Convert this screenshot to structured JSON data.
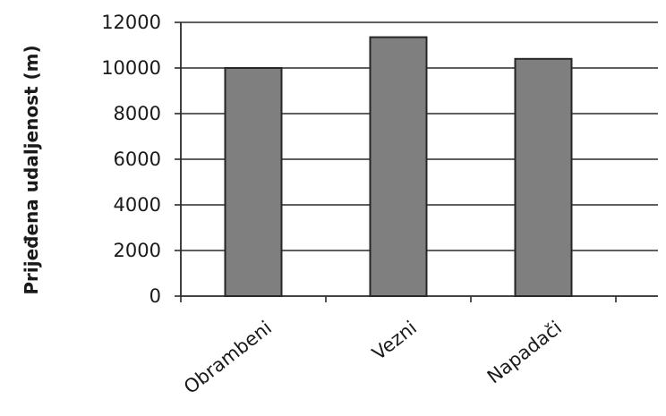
{
  "chart_data": {
    "type": "bar",
    "categories": [
      "Obrambeni",
      "Vezni",
      "Napadači"
    ],
    "values": [
      10000,
      11350,
      10400
    ],
    "title": "",
    "xlabel": "",
    "ylabel": "Prijeđena udaljenost  (m)",
    "ylim": [
      0,
      12000
    ],
    "yticks": [
      0,
      2000,
      4000,
      6000,
      8000,
      10000,
      12000
    ],
    "grid": true,
    "legend": "none",
    "bar_color": "#7f7f7f",
    "bar_edge_color": "#262626"
  }
}
